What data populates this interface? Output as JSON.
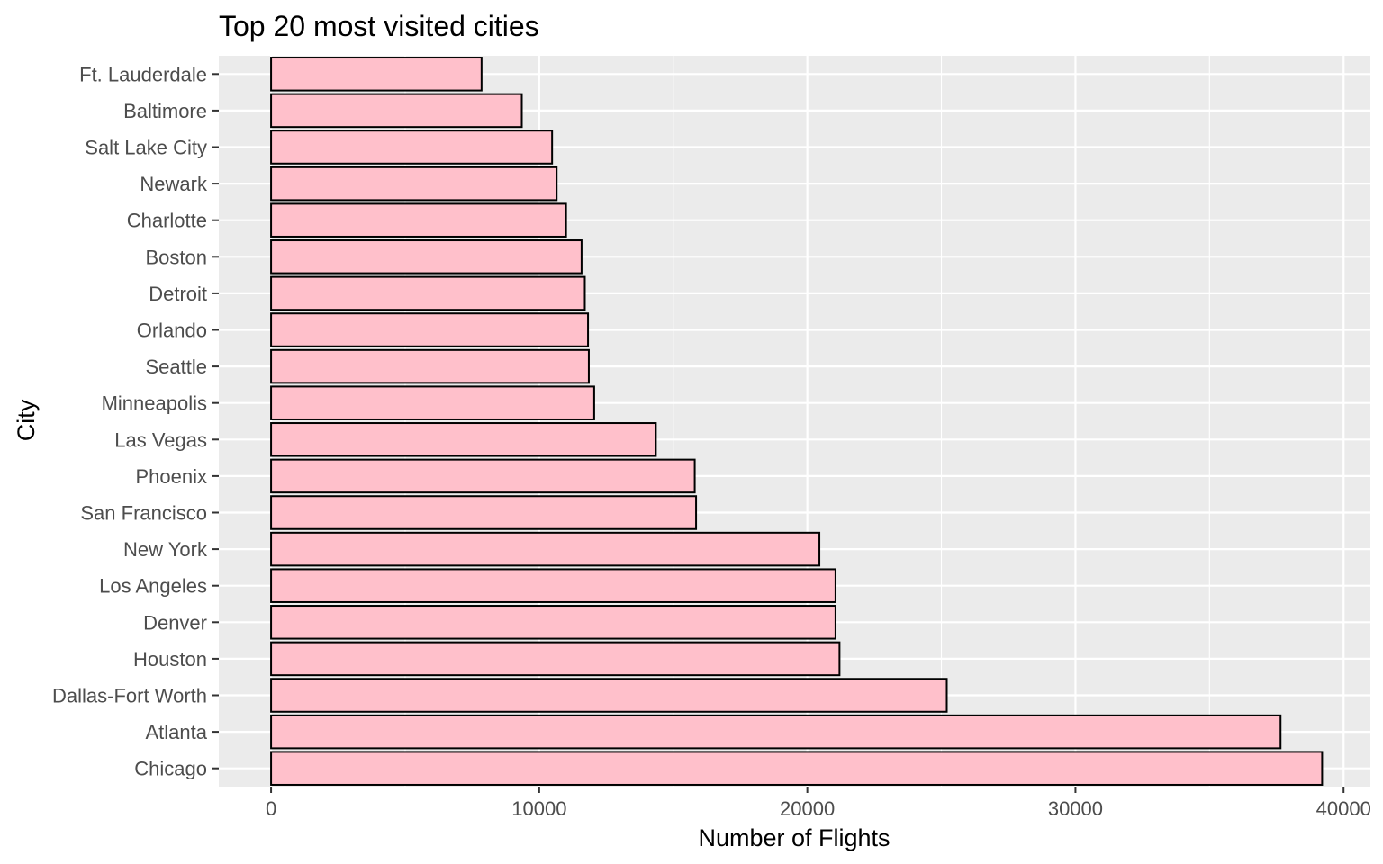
{
  "chart_data": {
    "type": "bar",
    "orientation": "horizontal",
    "title": "Top 20 most visited cities",
    "xlabel": "Number of Flights",
    "ylabel": "City",
    "categories": [
      "Chicago",
      "Atlanta",
      "Dallas-Fort Worth",
      "Houston",
      "Denver",
      "Los Angeles",
      "New York",
      "San Francisco",
      "Phoenix",
      "Las Vegas",
      "Minneapolis",
      "Seattle",
      "Orlando",
      "Detroit",
      "Boston",
      "Charlotte",
      "Newark",
      "Salt Lake City",
      "Baltimore",
      "Ft. Lauderdale"
    ],
    "values": [
      39200,
      37650,
      25200,
      21200,
      21050,
      21050,
      20450,
      15850,
      15800,
      14350,
      12050,
      11850,
      11820,
      11700,
      11580,
      11000,
      10650,
      10480,
      9350,
      7850
    ],
    "xlim": [
      -1950,
      41000
    ],
    "xticks": [
      0,
      10000,
      20000,
      30000,
      40000
    ],
    "xtick_labels": [
      "0",
      "10000",
      "20000",
      "30000",
      "40000"
    ],
    "grid": true,
    "legend": "none",
    "colors": {
      "bar_fill": "#ffc0cb",
      "bar_stroke": "#000000",
      "panel_background": "#ebebeb",
      "grid_line": "#ffffff",
      "tick_text": "#4d4d4d",
      "tick_mark": "#333333"
    }
  }
}
